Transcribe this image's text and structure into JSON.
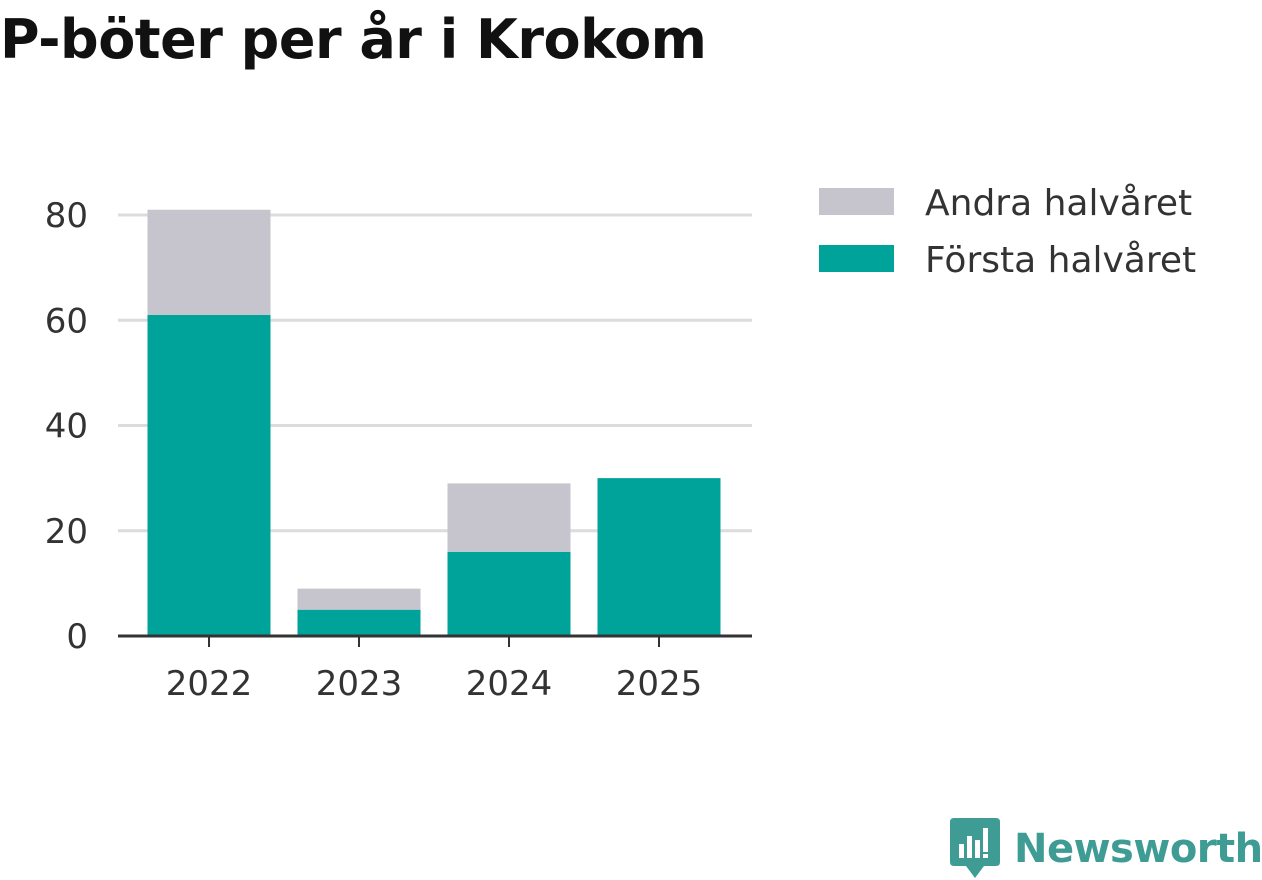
{
  "title": "P-böter per år i Krokom",
  "brand": {
    "name": "Newsworthy",
    "color": "#3f9c95",
    "icon": "newsworthy-logo-icon"
  },
  "chart_data": {
    "type": "bar",
    "stacked": true,
    "title": "P-böter per år i Krokom",
    "xlabel": "",
    "ylabel": "",
    "categories": [
      "2022",
      "2023",
      "2024",
      "2025"
    ],
    "ylim": [
      0,
      80
    ],
    "yticks": [
      0,
      20,
      40,
      60,
      80
    ],
    "grid": true,
    "legend_position": "right",
    "series": [
      {
        "name": "Första halvåret",
        "color": "#00a39a",
        "values": [
          61,
          5,
          16,
          30
        ]
      },
      {
        "name": "Andra halvåret",
        "color": "#c6c5cd",
        "values": [
          20,
          4,
          13,
          0
        ]
      }
    ]
  }
}
